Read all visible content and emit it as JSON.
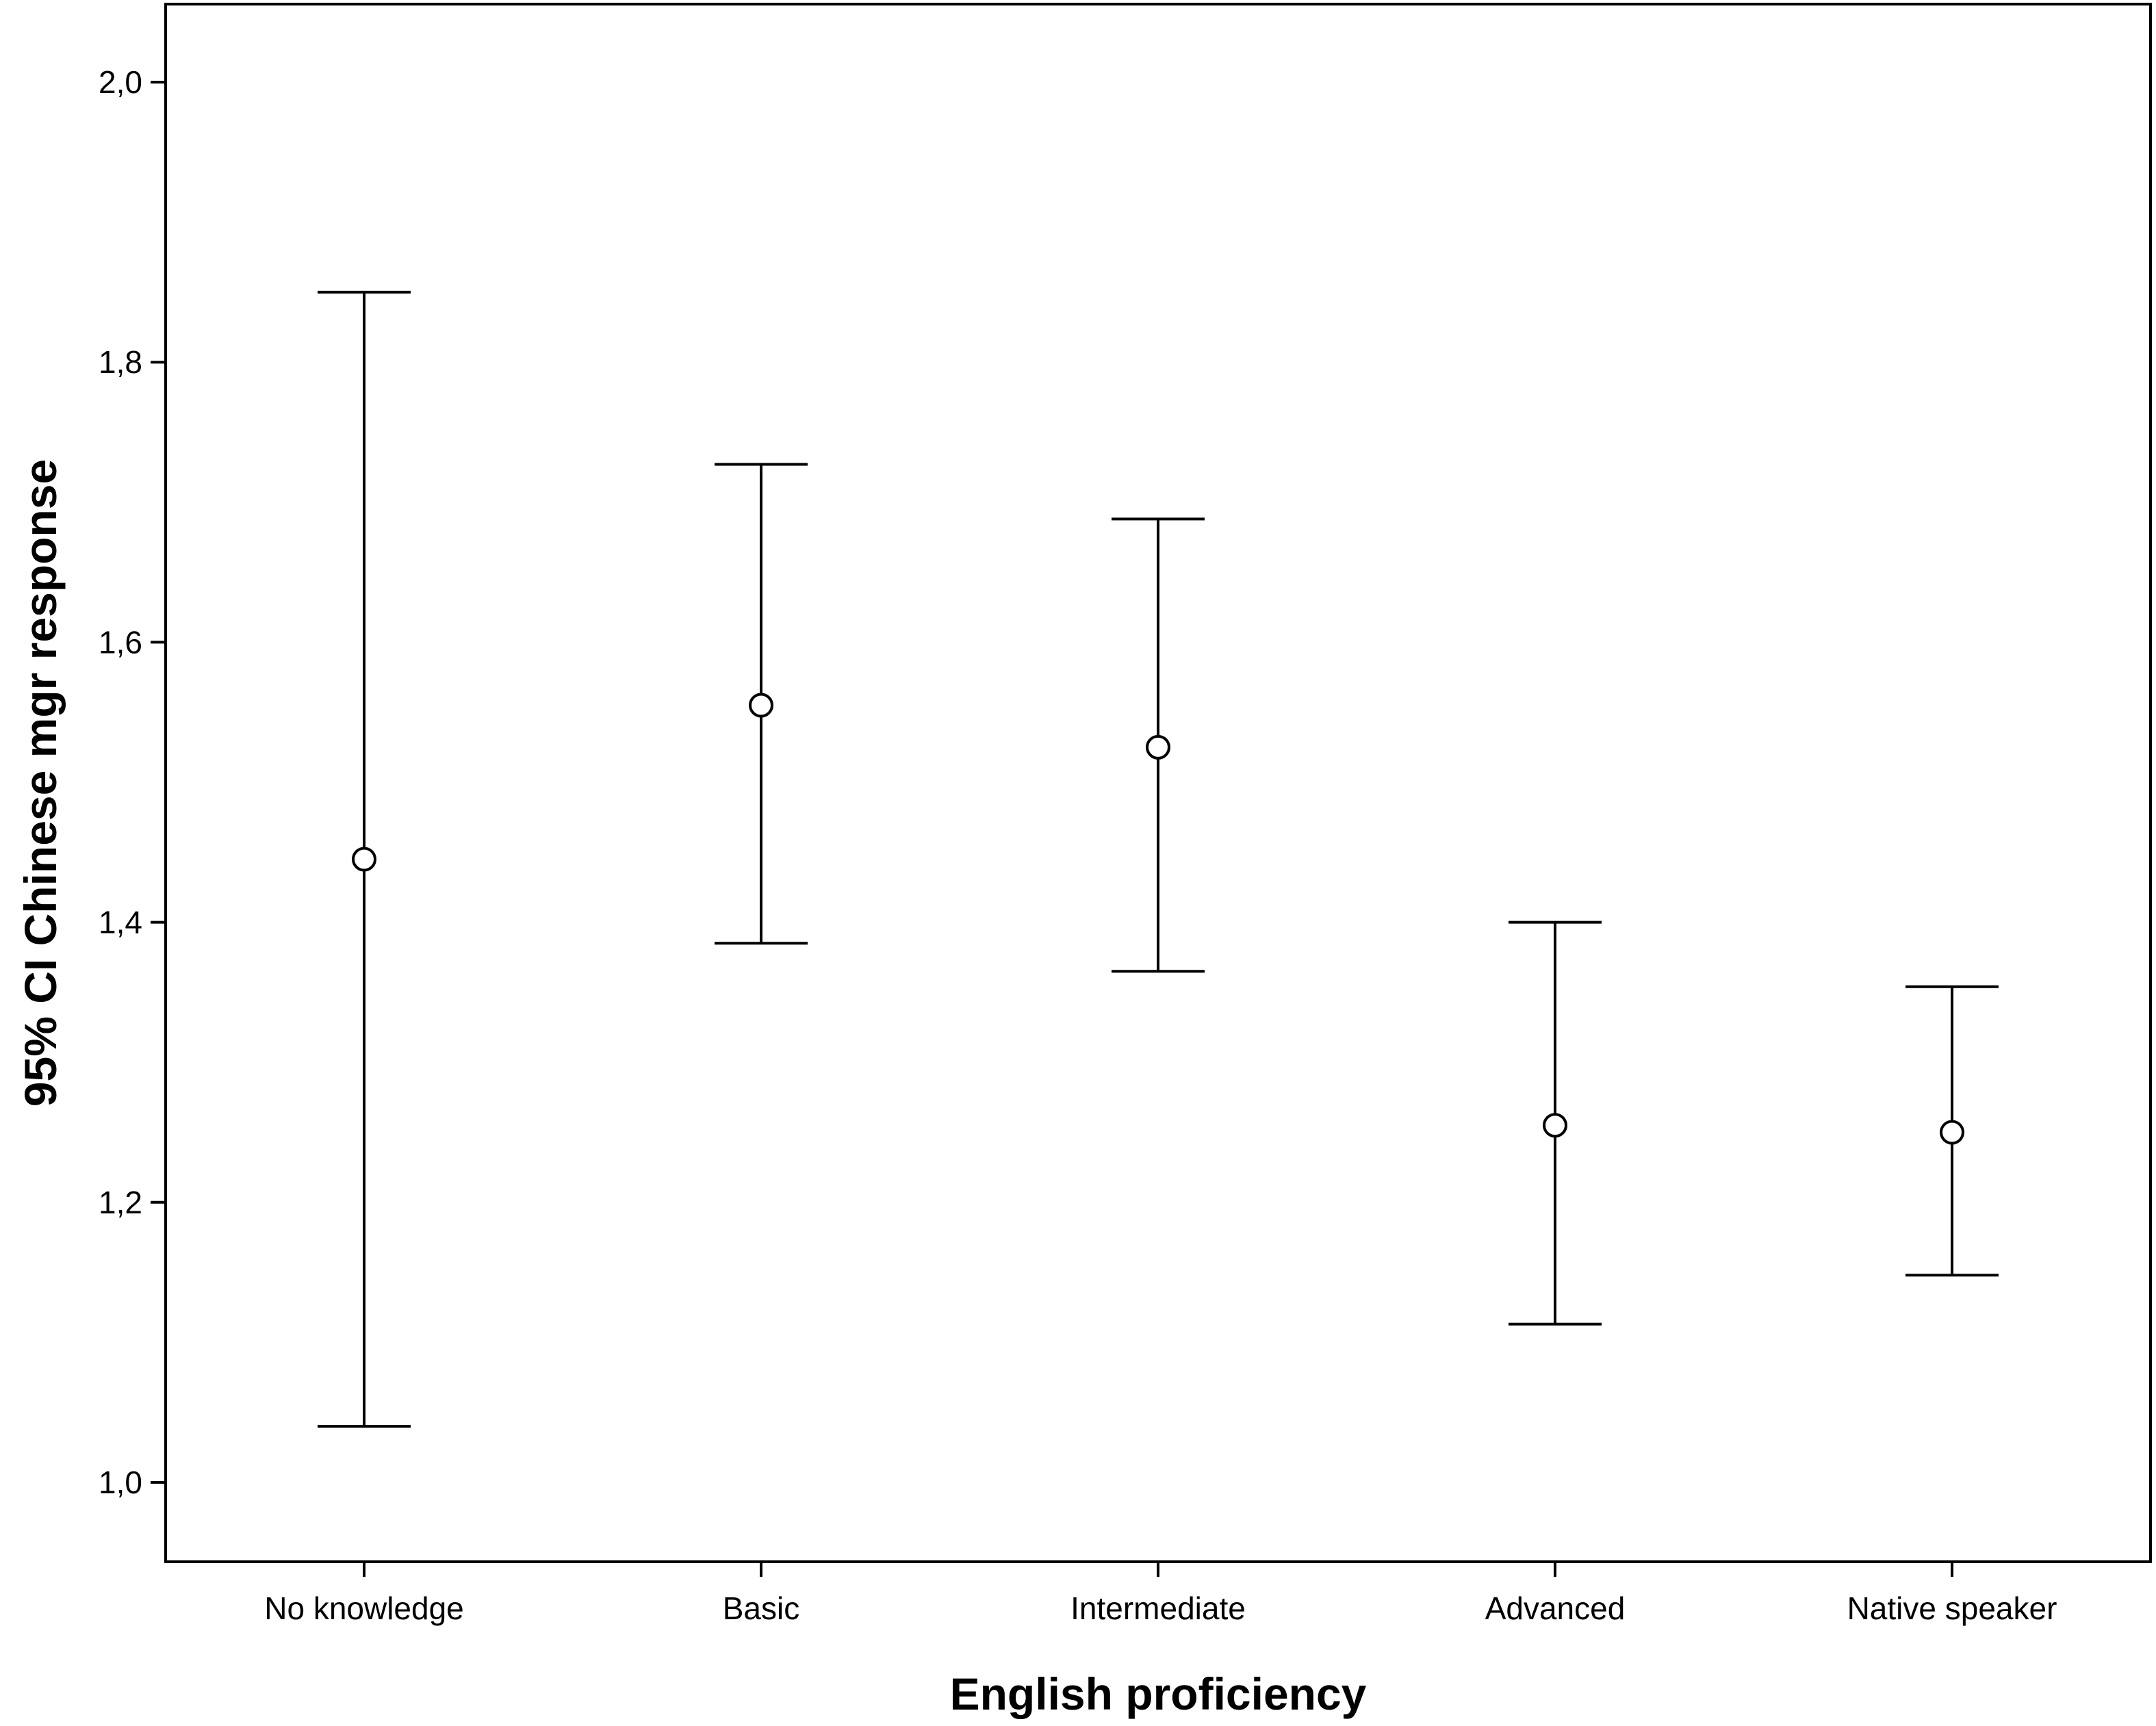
{
  "chart_data": {
    "type": "errorbar",
    "title": "",
    "xlabel": "English proficiency",
    "ylabel": "95% CI Chinese mgr response",
    "ylim": [
      0.93,
      2.05
    ],
    "y_ticks": [
      1.0,
      1.2,
      1.4,
      1.6,
      1.8,
      2.0
    ],
    "y_tick_labels": [
      "1,0",
      "1,2",
      "1,4",
      "1,6",
      "1,8",
      "2,0"
    ],
    "categories": [
      "No knowledge",
      "Basic",
      "Intermediate",
      "Advanced",
      "Native speaker"
    ],
    "means": [
      1.445,
      1.555,
      1.525,
      1.255,
      1.25
    ],
    "ci_lower": [
      1.04,
      1.385,
      1.365,
      1.113,
      1.148
    ],
    "ci_upper": [
      1.85,
      1.727,
      1.688,
      1.4,
      1.354
    ],
    "grid": false,
    "legend": "none",
    "colors": {
      "line": "#000000",
      "background": "#ffffff"
    }
  }
}
